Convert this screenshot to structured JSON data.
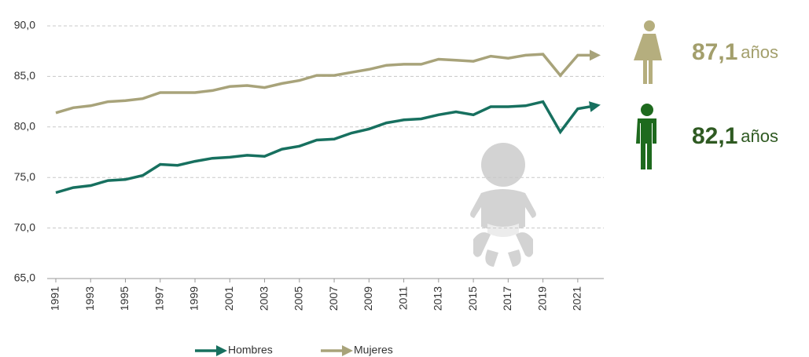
{
  "chart_data": {
    "type": "line",
    "x": [
      1991,
      1992,
      1993,
      1994,
      1995,
      1996,
      1997,
      1998,
      1999,
      2000,
      2001,
      2002,
      2003,
      2004,
      2005,
      2006,
      2007,
      2008,
      2009,
      2010,
      2011,
      2012,
      2013,
      2014,
      2015,
      2016,
      2017,
      2018,
      2019,
      2020,
      2021,
      2022
    ],
    "series": [
      {
        "name": "Hombres",
        "color": "#17705f",
        "values": [
          73.5,
          74.0,
          74.2,
          74.7,
          74.8,
          75.2,
          76.3,
          76.2,
          76.6,
          76.9,
          77.0,
          77.2,
          77.1,
          77.8,
          78.1,
          78.7,
          78.8,
          79.4,
          79.8,
          80.4,
          80.7,
          80.8,
          81.2,
          81.5,
          81.2,
          82.0,
          82.0,
          82.1,
          82.5,
          79.5,
          81.8,
          82.1
        ]
      },
      {
        "name": "Mujeres",
        "color": "#a8a37a",
        "values": [
          81.4,
          81.9,
          82.1,
          82.5,
          82.6,
          82.8,
          83.4,
          83.4,
          83.4,
          83.6,
          84.0,
          84.1,
          83.9,
          84.3,
          84.6,
          85.1,
          85.1,
          85.4,
          85.7,
          86.1,
          86.2,
          86.2,
          86.7,
          86.6,
          86.5,
          87.0,
          86.8,
          87.1,
          87.2,
          85.1,
          87.1,
          87.1
        ]
      }
    ],
    "xlim": [
      1991,
      2022
    ],
    "xticks": [
      1991,
      1993,
      1995,
      1997,
      1999,
      2001,
      2003,
      2005,
      2007,
      2009,
      2011,
      2013,
      2015,
      2017,
      2019,
      2021
    ],
    "ylim": [
      65,
      90
    ],
    "yticks": [
      {
        "value": 65,
        "label": "65,0"
      },
      {
        "value": 70,
        "label": "70,0"
      },
      {
        "value": 75,
        "label": "75,0"
      },
      {
        "value": 80,
        "label": "80,0"
      },
      {
        "value": 85,
        "label": "85,0"
      },
      {
        "value": 90,
        "label": "90,0"
      }
    ],
    "grid": true,
    "annotations": [
      {
        "value": "87,1",
        "suffix": "años",
        "color": "#a39f6c"
      },
      {
        "value": "82,1",
        "suffix": "años",
        "color": "#2f5a22"
      }
    ]
  }
}
